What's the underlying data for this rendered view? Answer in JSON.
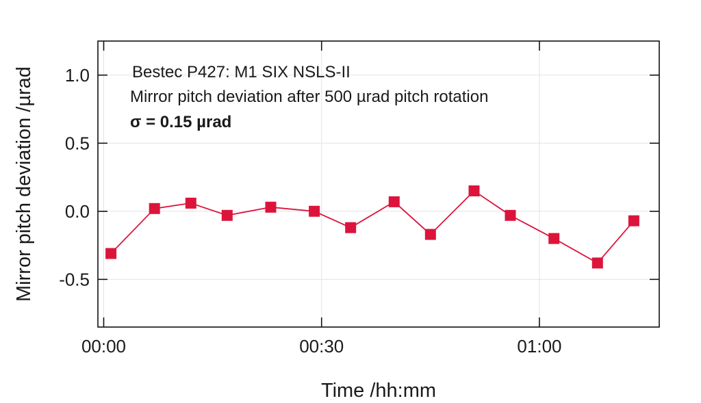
{
  "chart_data": {
    "type": "line",
    "xlabel": "Time /hh:mm",
    "ylabel": "Mirror pitch deviation /µrad",
    "xlim": [
      -0.8,
      76.5
    ],
    "ylim": [
      -0.85,
      1.25
    ],
    "grid": true,
    "x_ticks": [
      {
        "value": 0,
        "label": "00:00"
      },
      {
        "value": 30,
        "label": "00:30"
      },
      {
        "value": 60,
        "label": "01:00"
      }
    ],
    "y_ticks": [
      {
        "value": 1.0,
        "label": "1.0"
      },
      {
        "value": 0.5,
        "label": "0.5"
      },
      {
        "value": 0.0,
        "label": "0.0"
      },
      {
        "value": -0.5,
        "label": "-0.5"
      }
    ],
    "annotations": [
      "Bestec P427: M1 SIX NSLS-II",
      "Mirror pitch deviation after 500 µrad pitch rotation",
      "σ = 0.15 µrad"
    ],
    "series_color": "#dc143c",
    "series": [
      {
        "x": [
          "00:01",
          "00:07",
          "00:12",
          "00:17",
          "00:23",
          "00:29",
          "00:34",
          "00:40",
          "00:45",
          "00:51",
          "00:56",
          "01:02",
          "01:08",
          "01:13"
        ],
        "y": [
          -0.31,
          0.02,
          0.06,
          -0.03,
          0.03,
          0.0,
          -0.12,
          0.07,
          -0.17,
          0.15,
          -0.03,
          -0.2,
          -0.38,
          -0.07
        ],
        "marker": "square"
      }
    ]
  }
}
